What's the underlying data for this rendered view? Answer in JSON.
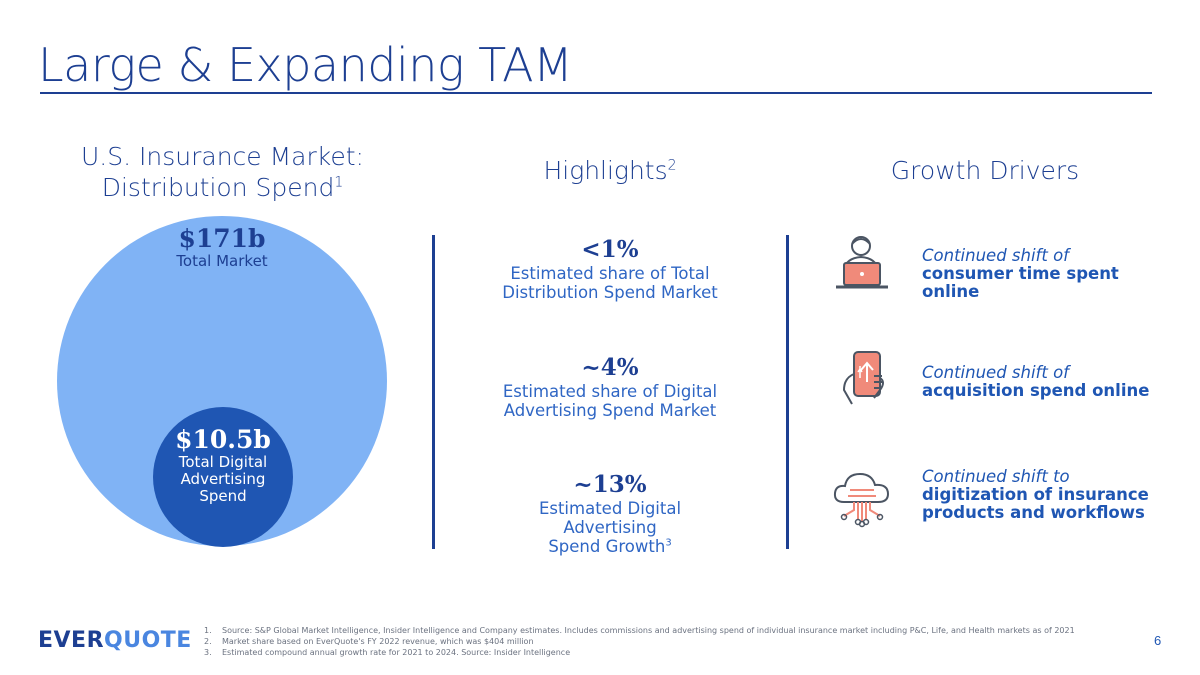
{
  "title": "Large & Expanding TAM",
  "market": {
    "heading_line1": "U.S. Insurance Market:",
    "heading_line2": "Distribution Spend",
    "heading_sup": "1",
    "total_value": "$171b",
    "total_label": "Total Market",
    "digital_value": "$10.5b",
    "digital_label_line1": "Total Digital",
    "digital_label_line2": "Advertising",
    "digital_label_line3": "Spend"
  },
  "highlights": {
    "heading": "Highlights",
    "heading_sup": "2",
    "items": [
      {
        "value": "<1%",
        "line1": "Estimated share of Total",
        "line2": "Distribution Spend Market"
      },
      {
        "value": "~4%",
        "line1": "Estimated share of Digital",
        "line2": "Advertising Spend Market"
      },
      {
        "value": "~13%",
        "line1": "Estimated Digital Advertising",
        "line2": "Spend Growth",
        "sup": "3"
      }
    ]
  },
  "drivers": {
    "heading": "Growth Drivers",
    "items": [
      {
        "icon": "person-laptop-icon",
        "lead": "Continued shift of",
        "bold_line1": "consumer time spent online",
        "bold_line2": ""
      },
      {
        "icon": "hand-phone-icon",
        "lead": "Continued shift of",
        "bold_line1": "acquisition spend online",
        "bold_line2": ""
      },
      {
        "icon": "cloud-network-icon",
        "lead": "Continued shift to",
        "bold_line1": "digitization of insurance",
        "bold_line2": "products and workflows"
      }
    ]
  },
  "footer": {
    "logo_part1": "EVER",
    "logo_part2": "QUOTE",
    "footnotes": [
      {
        "num": "1.",
        "text": "Source: S&P Global Market Intelligence, Insider Intelligence and Company estimates. Includes commissions and advertising spend of individual insurance market including P&C, Life, and Health markets as of 2021"
      },
      {
        "num": "2.",
        "text": "Market share based on EverQuote's FY 2022 revenue, which was $404 million"
      },
      {
        "num": "3.",
        "text": "Estimated compound annual growth rate for 2021 to 2024. Source: Insider Intelligence"
      }
    ],
    "page_number": "6"
  },
  "colors": {
    "navy": "#1d3f92",
    "accent_blue": "#1f56b3",
    "light_blue": "#80b3f5",
    "icon_coral": "#f08a7a",
    "icon_gray": "#4b5563"
  }
}
